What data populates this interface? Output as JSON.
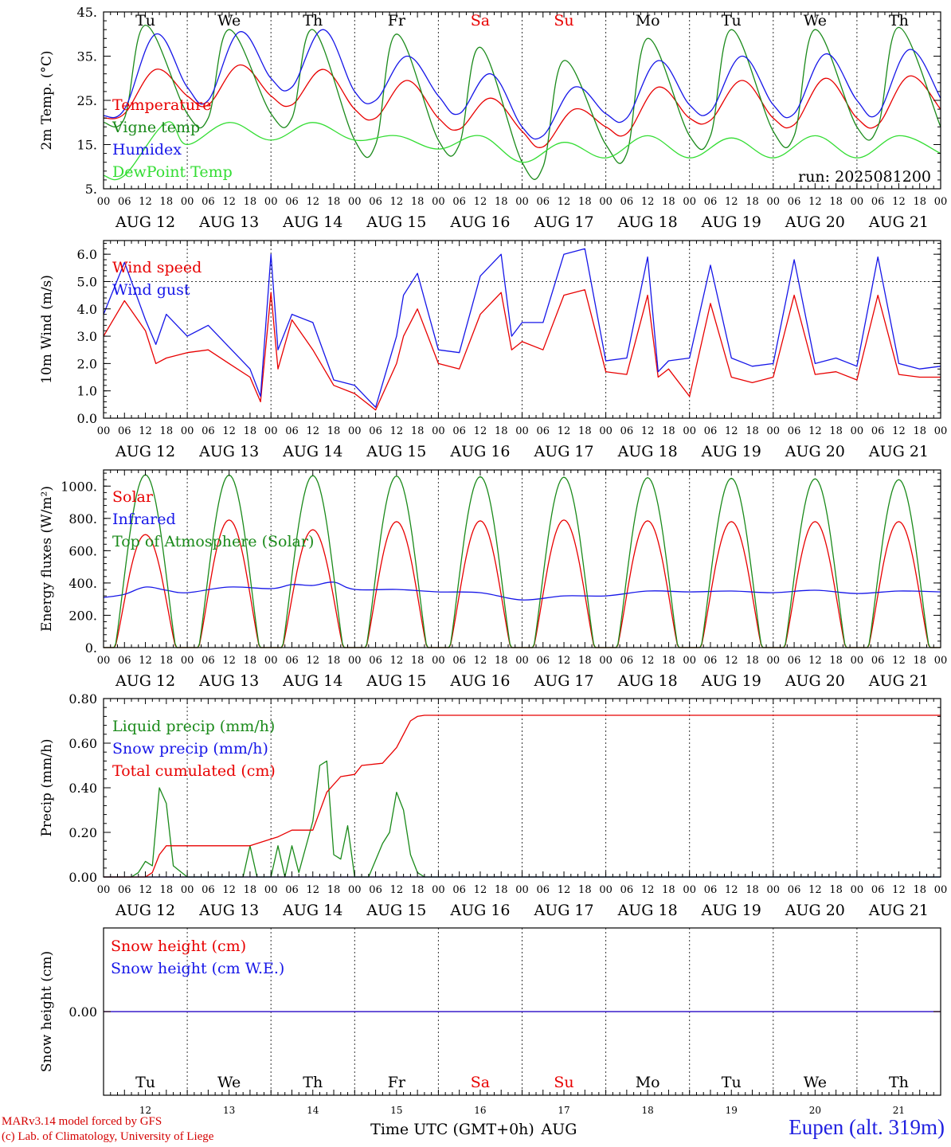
{
  "colors": {
    "red": "#e80000",
    "dark_green": "#1a8a1a",
    "blue": "#1616e8",
    "light_green": "#33dd33",
    "weekend": "#e80000",
    "axis": "#000000",
    "grid": "#333333"
  },
  "days": [
    {
      "dow": "Tu",
      "date": "AUG 12",
      "num": "12",
      "weekend": false
    },
    {
      "dow": "We",
      "date": "AUG 13",
      "num": "13",
      "weekend": false
    },
    {
      "dow": "Th",
      "date": "AUG 14",
      "num": "14",
      "weekend": false
    },
    {
      "dow": "Fr",
      "date": "AUG 15",
      "num": "15",
      "weekend": false
    },
    {
      "dow": "Sa",
      "date": "AUG 16",
      "num": "16",
      "weekend": true
    },
    {
      "dow": "Su",
      "date": "AUG 17",
      "num": "17",
      "weekend": true
    },
    {
      "dow": "Mo",
      "date": "AUG 18",
      "num": "18",
      "weekend": false
    },
    {
      "dow": "Tu",
      "date": "AUG 19",
      "num": "19",
      "weekend": false
    },
    {
      "dow": "We",
      "date": "AUG 20",
      "num": "20",
      "weekend": false
    },
    {
      "dow": "Th",
      "date": "AUG 21",
      "num": "21",
      "weekend": false
    }
  ],
  "hour_labels": [
    "00",
    "06",
    "12",
    "18"
  ],
  "final_hour_label": "00",
  "run_label": "run: 2025081200",
  "footer": {
    "credit_line1": "MARv3.14 model forced by GFS",
    "credit_line2": "(c) Lab. of Climatology, University of Liege",
    "xlabel": "Time UTC (GMT+0h)",
    "month": "AUG",
    "station": "Eupen (alt. 319m)"
  },
  "chart_data": [
    {
      "type": "line",
      "ylabel": "2m Temp. (°C)",
      "ylim": [
        5,
        45
      ],
      "yticks": [
        5,
        15,
        25,
        35,
        45
      ],
      "ytick_labels": [
        "5.",
        "15.",
        "25.",
        "35.",
        "45."
      ],
      "x_unit": "hours since AUG 12 00 UTC",
      "series": [
        {
          "name": "Temperature",
          "color": "red",
          "x": [
            0,
            6,
            15,
            24,
            30,
            39,
            48,
            54,
            63,
            72,
            78,
            87,
            96,
            102,
            111,
            120,
            126,
            135,
            144,
            150,
            159,
            168,
            174,
            183,
            192,
            198,
            207,
            216,
            222,
            231,
            240
          ],
          "y": [
            21,
            22,
            32,
            26,
            24,
            33,
            26,
            24,
            32,
            23,
            21,
            29.5,
            21,
            18.5,
            25.5,
            18,
            14.5,
            23,
            19,
            17.5,
            28,
            21,
            20.5,
            29.5,
            21,
            19.5,
            30,
            21,
            19.5,
            30.5,
            23
          ]
        },
        {
          "name": "Vigne temp",
          "color": "dark_green",
          "x": [
            0,
            6,
            12,
            24,
            30,
            36,
            48,
            54,
            60,
            72,
            78,
            84,
            96,
            102,
            108,
            120,
            126,
            132,
            144,
            150,
            156,
            168,
            174,
            180,
            192,
            198,
            204,
            216,
            222,
            228,
            240
          ],
          "y": [
            20,
            21,
            42,
            22,
            21,
            41,
            22,
            21,
            41,
            16,
            15,
            40,
            16,
            15,
            37,
            11,
            10,
            34,
            15,
            13,
            39,
            17,
            17,
            41,
            18,
            17,
            41,
            19,
            19,
            41.5,
            19
          ]
        },
        {
          "name": "Humidex",
          "color": "blue",
          "x": [
            0,
            6,
            15,
            24,
            30,
            39,
            48,
            54,
            63,
            72,
            78,
            87,
            96,
            102,
            111,
            120,
            126,
            135,
            144,
            150,
            159,
            168,
            174,
            183,
            192,
            198,
            207,
            216,
            222,
            231,
            240
          ],
          "y": [
            21.5,
            23,
            40,
            28,
            25,
            40.5,
            30,
            28,
            41,
            27,
            25,
            35,
            26,
            22,
            31,
            19,
            17,
            28,
            22,
            21,
            34,
            24,
            22.5,
            35,
            24,
            22,
            35.5,
            25,
            22,
            36.5,
            25.5
          ]
        },
        {
          "name": "DewPoint Temp",
          "color": "light_green",
          "x": [
            0,
            6,
            18,
            24,
            36,
            48,
            60,
            72,
            84,
            96,
            108,
            120,
            132,
            144,
            156,
            168,
            180,
            192,
            204,
            216,
            228,
            240
          ],
          "y": [
            8,
            8,
            20,
            15,
            20,
            16,
            20,
            16,
            17,
            14,
            17,
            11,
            15.5,
            12,
            17,
            12,
            16.5,
            12,
            17,
            12,
            17,
            13
          ]
        }
      ]
    },
    {
      "type": "line",
      "ylabel": "10m Wind (m/s)",
      "ylim": [
        0,
        6.5
      ],
      "yticks": [
        0,
        1,
        2,
        3,
        4,
        5,
        6
      ],
      "ytick_labels": [
        "0.0",
        "1.0",
        "2.0",
        "3.0",
        "4.0",
        "5.0",
        "6.0"
      ],
      "reference_line": 5,
      "x_unit": "hours since AUG 12 00 UTC",
      "series": [
        {
          "name": "Wind speed",
          "color": "red",
          "x": [
            0,
            6,
            12,
            15,
            18,
            24,
            30,
            36,
            42,
            45,
            48,
            50,
            54,
            60,
            66,
            72,
            78,
            84,
            86,
            90,
            96,
            102,
            108,
            114,
            117,
            120,
            126,
            132,
            138,
            144,
            150,
            156,
            159,
            162,
            168,
            174,
            180,
            186,
            192,
            198,
            204,
            210,
            216,
            222,
            228,
            234,
            240
          ],
          "y": [
            3,
            4.3,
            3.2,
            2,
            2.2,
            2.4,
            2.5,
            2.0,
            1.5,
            0.6,
            4.6,
            1.8,
            3.6,
            2.5,
            1.2,
            0.9,
            0.3,
            2.0,
            3.0,
            4.0,
            2.0,
            1.8,
            3.8,
            4.6,
            2.5,
            2.8,
            2.5,
            4.5,
            4.7,
            1.7,
            1.6,
            4.5,
            1.5,
            1.8,
            0.8,
            4.2,
            1.5,
            1.3,
            1.5,
            4.5,
            1.6,
            1.7,
            1.4,
            4.5,
            1.6,
            1.5,
            1.5
          ]
        },
        {
          "name": "Wind gust",
          "color": "blue",
          "x": [
            0,
            6,
            12,
            15,
            18,
            24,
            30,
            36,
            42,
            45,
            48,
            50,
            54,
            60,
            66,
            72,
            78,
            84,
            86,
            90,
            96,
            102,
            108,
            114,
            117,
            120,
            126,
            132,
            138,
            144,
            150,
            156,
            159,
            162,
            168,
            174,
            180,
            186,
            192,
            198,
            204,
            210,
            216,
            222,
            228,
            234,
            240
          ],
          "y": [
            3.8,
            5.7,
            3.6,
            2.7,
            3.8,
            3.0,
            3.4,
            2.6,
            1.8,
            0.8,
            6.0,
            2.5,
            3.8,
            3.5,
            1.4,
            1.2,
            0.4,
            3.0,
            4.5,
            5.3,
            2.5,
            2.4,
            5.2,
            6.0,
            3.0,
            3.5,
            3.5,
            6.0,
            6.2,
            2.1,
            2.2,
            5.9,
            1.7,
            2.1,
            2.2,
            5.6,
            2.2,
            1.9,
            2.0,
            5.8,
            2.0,
            2.2,
            1.9,
            5.9,
            2.0,
            1.8,
            1.9
          ]
        }
      ]
    },
    {
      "type": "line",
      "ylabel": "Energy fluxes (W/m²)",
      "ylim": [
        0,
        1100
      ],
      "yticks": [
        0,
        200,
        400,
        600,
        800,
        1000
      ],
      "ytick_labels": [
        "0.",
        "200.",
        "400.",
        "600.",
        "800.",
        "1000."
      ],
      "x_unit": "hours since AUG 12 00 UTC",
      "diurnal_peak_hour_utc": 12,
      "series": [
        {
          "name": "Solar",
          "color": "red",
          "type": "diurnal",
          "daily_peaks": [
            700,
            790,
            730,
            780,
            785,
            790,
            785,
            780,
            780,
            780
          ]
        },
        {
          "name": "Infrared",
          "color": "blue",
          "x": [
            0,
            6,
            12,
            18,
            24,
            36,
            48,
            54,
            60,
            66,
            72,
            84,
            96,
            108,
            120,
            132,
            144,
            156,
            168,
            180,
            192,
            204,
            216,
            228,
            240
          ],
          "y": [
            310,
            330,
            375,
            355,
            340,
            375,
            365,
            390,
            385,
            405,
            360,
            360,
            345,
            340,
            295,
            320,
            320,
            350,
            345,
            350,
            340,
            355,
            335,
            350,
            345
          ]
        },
        {
          "name": "Top of Atmosphere (Solar)",
          "color": "dark_green",
          "type": "diurnal",
          "daily_peaks": [
            1070,
            1068,
            1065,
            1062,
            1058,
            1055,
            1052,
            1048,
            1045,
            1040
          ]
        }
      ]
    },
    {
      "type": "line",
      "ylabel": "Precip (mm/h)",
      "ylim": [
        0,
        0.8
      ],
      "yticks": [
        0,
        0.2,
        0.4,
        0.6,
        0.8
      ],
      "ytick_labels": [
        "0.00",
        "0.20",
        "0.40",
        "0.60",
        "0.80"
      ],
      "x_unit": "hours since AUG 12 00 UTC",
      "series": [
        {
          "name": "Liquid precip (mm/h)",
          "color": "dark_green",
          "x": [
            0,
            8,
            10,
            12,
            14,
            16,
            18,
            20,
            24,
            40,
            42,
            44,
            48,
            50,
            52,
            54,
            56,
            60,
            62,
            64,
            66,
            68,
            70,
            72,
            74,
            76,
            80,
            82,
            84,
            86,
            88,
            90,
            92,
            96,
            120,
            240
          ],
          "y": [
            0,
            0,
            0.02,
            0.07,
            0.05,
            0.4,
            0.33,
            0.05,
            0,
            0,
            0.14,
            0,
            0,
            0.14,
            0,
            0.14,
            0.02,
            0.25,
            0.5,
            0.52,
            0.1,
            0.08,
            0.23,
            0,
            0,
            0,
            0.15,
            0.2,
            0.38,
            0.3,
            0.1,
            0.02,
            0,
            0,
            0,
            0
          ]
        },
        {
          "name": "Snow precip (mm/h)",
          "color": "blue",
          "x": [
            0,
            240
          ],
          "y": [
            0,
            0
          ]
        },
        {
          "name": "Total cumulated (cm)",
          "color": "red",
          "x": [
            0,
            12,
            14,
            16,
            18,
            42,
            48,
            50,
            54,
            60,
            64,
            68,
            72,
            74,
            80,
            84,
            88,
            90,
            92,
            240
          ],
          "y": [
            0,
            0,
            0.02,
            0.1,
            0.14,
            0.14,
            0.17,
            0.18,
            0.21,
            0.21,
            0.38,
            0.45,
            0.46,
            0.5,
            0.51,
            0.58,
            0.7,
            0.72,
            0.725,
            0.725
          ]
        }
      ]
    },
    {
      "type": "line",
      "ylabel": "Snow height (cm)",
      "ylim": [
        -1,
        1
      ],
      "yticks": [
        0
      ],
      "ytick_labels": [
        "0.00"
      ],
      "x_unit": "hours since AUG 12 00 UTC",
      "series": [
        {
          "name": "Snow height (cm)",
          "color": "red",
          "x": [
            0,
            240
          ],
          "y": [
            0,
            0
          ]
        },
        {
          "name": "Snow height (cm W.E.)",
          "color": "blue",
          "x": [
            0,
            240
          ],
          "y": [
            0,
            0
          ]
        }
      ]
    }
  ]
}
